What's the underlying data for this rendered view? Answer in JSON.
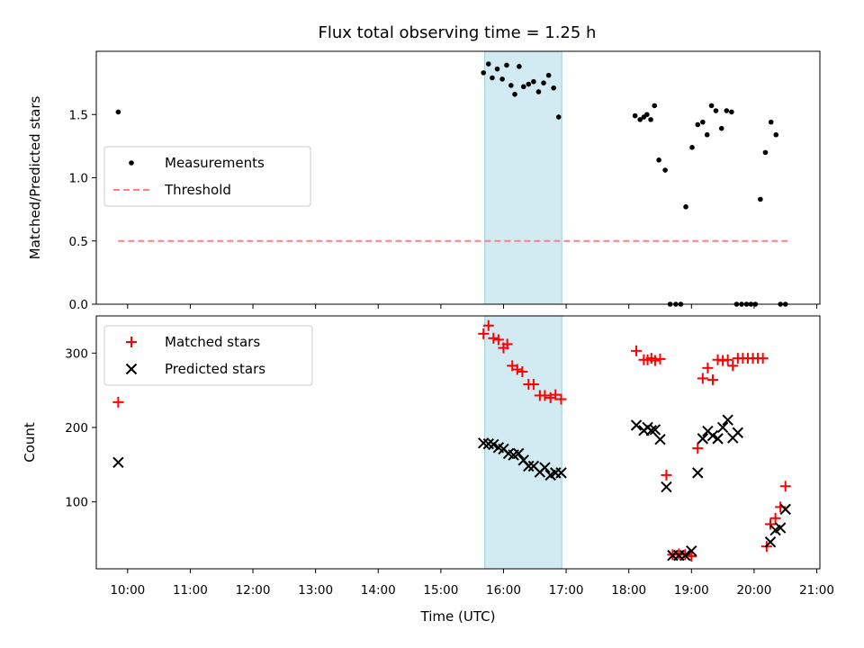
{
  "chart_data": [
    {
      "type": "scatter",
      "title": "Flux total observing time = 1.25 h",
      "xlabel": "",
      "ylabel": "Matched/Predicted stars",
      "xlim": [
        9.5,
        21.05
      ],
      "ylim": [
        0,
        2.0
      ],
      "yticks": [
        0.0,
        0.5,
        1.0,
        1.5
      ],
      "ytick_labels": [
        "0.0",
        "0.5",
        "1.0",
        "1.5"
      ],
      "highlight_span": {
        "x": [
          15.7,
          16.93
        ],
        "color": "#add8e6"
      },
      "legend": {
        "position": "center-left",
        "entries": [
          {
            "label": "Measurements",
            "marker": "dot",
            "color": "#000000"
          },
          {
            "label": "Threshold",
            "marker": "dashed-line",
            "color": "#ff8080"
          }
        ]
      },
      "threshold": {
        "x": [
          9.85,
          20.55
        ],
        "y": 0.5
      },
      "series": [
        {
          "name": "Measurements",
          "color": "#000000",
          "x": [
            9.85,
            15.68,
            15.76,
            15.82,
            15.9,
            15.98,
            16.05,
            16.12,
            16.18,
            16.25,
            16.32,
            16.4,
            16.48,
            16.56,
            16.64,
            16.72,
            16.8,
            16.88,
            18.1,
            18.18,
            18.24,
            18.29,
            18.35,
            18.41,
            18.48,
            18.58,
            18.66,
            18.75,
            18.83,
            18.91,
            19.01,
            19.1,
            19.18,
            19.25,
            19.32,
            19.39,
            19.48,
            19.56,
            19.64,
            19.72,
            19.8,
            19.88,
            19.95,
            20.02,
            20.1,
            20.18,
            20.27,
            20.35,
            20.42,
            20.5
          ],
          "y": [
            1.52,
            1.83,
            1.9,
            1.79,
            1.86,
            1.78,
            1.89,
            1.73,
            1.66,
            1.88,
            1.72,
            1.74,
            1.76,
            1.68,
            1.75,
            1.81,
            1.71,
            1.48,
            1.49,
            1.46,
            1.48,
            1.5,
            1.46,
            1.57,
            1.14,
            1.06,
            0.0,
            0.0,
            0.0,
            0.77,
            1.24,
            1.42,
            1.44,
            1.34,
            1.57,
            1.53,
            1.39,
            1.53,
            1.52,
            0.0,
            0.0,
            0.0,
            0.0,
            0.0,
            0.83,
            1.2,
            1.44,
            1.34,
            0.0,
            0.0
          ],
          "note": ""
        }
      ]
    },
    {
      "type": "scatter",
      "title": "",
      "xlabel": "Time (UTC)",
      "ylabel": "Count",
      "xlim": [
        9.5,
        21.05
      ],
      "ylim": [
        10,
        350
      ],
      "yticks": [
        100,
        200,
        300
      ],
      "ytick_labels": [
        "100",
        "200",
        "300"
      ],
      "xticks": [
        10,
        11,
        12,
        13,
        14,
        15,
        16,
        17,
        18,
        19,
        20,
        21
      ],
      "xtick_labels": [
        "10:00",
        "11:00",
        "12:00",
        "13:00",
        "14:00",
        "15:00",
        "16:00",
        "17:00",
        "18:00",
        "19:00",
        "20:00",
        "21:00"
      ],
      "highlight_span": {
        "x": [
          15.7,
          16.93
        ],
        "color": "#add8e6"
      },
      "legend": {
        "position": "top-left",
        "entries": [
          {
            "label": "Matched stars",
            "marker": "plus",
            "color": "#ff0000"
          },
          {
            "label": "Predicted stars",
            "marker": "x",
            "color": "#000000"
          }
        ]
      },
      "series": [
        {
          "name": "Matched stars",
          "color": "#ff0000",
          "marker": "plus",
          "x": [
            9.85,
            15.68,
            15.76,
            15.84,
            15.92,
            16.0,
            16.06,
            16.14,
            16.22,
            16.3,
            16.4,
            16.48,
            16.58,
            16.66,
            16.75,
            16.83,
            16.92,
            18.12,
            18.24,
            18.3,
            18.36,
            18.42,
            18.5,
            18.6,
            18.7,
            18.8,
            18.9,
            19.0,
            19.1,
            19.18,
            19.26,
            19.34,
            19.42,
            19.5,
            19.58,
            19.66,
            19.74,
            19.82,
            19.9,
            19.98,
            20.06,
            20.14,
            20.2,
            20.26,
            20.34,
            20.42,
            20.5
          ],
          "y": [
            234,
            326,
            337,
            320,
            318,
            307,
            312,
            283,
            278,
            275,
            258,
            258,
            243,
            243,
            240,
            244,
            238,
            303,
            291,
            291,
            293,
            290,
            292,
            136,
            29,
            30,
            29,
            27,
            172,
            266,
            280,
            264,
            291,
            290,
            291,
            283,
            293,
            293,
            293,
            293,
            293,
            293,
            40,
            70,
            78,
            93,
            121
          ]
        },
        {
          "name": "Predicted stars",
          "color": "#000000",
          "marker": "x",
          "x": [
            9.85,
            15.68,
            15.76,
            15.84,
            15.92,
            16.0,
            16.08,
            16.16,
            16.24,
            16.32,
            16.4,
            16.48,
            16.58,
            16.66,
            16.75,
            16.83,
            16.92,
            18.12,
            18.24,
            18.3,
            18.36,
            18.42,
            18.5,
            18.6,
            18.7,
            18.8,
            18.9,
            19.0,
            19.1,
            19.18,
            19.26,
            19.34,
            19.42,
            19.5,
            19.58,
            19.66,
            19.74,
            20.26,
            20.34,
            20.42,
            20.5
          ],
          "y": [
            153,
            179,
            178,
            177,
            173,
            171,
            165,
            163,
            165,
            156,
            148,
            148,
            140,
            146,
            136,
            139,
            139,
            203,
            196,
            200,
            196,
            197,
            184,
            120,
            28,
            28,
            28,
            34,
            139,
            185,
            195,
            189,
            185,
            200,
            210,
            186,
            193,
            46,
            62,
            65,
            90
          ]
        }
      ]
    }
  ]
}
